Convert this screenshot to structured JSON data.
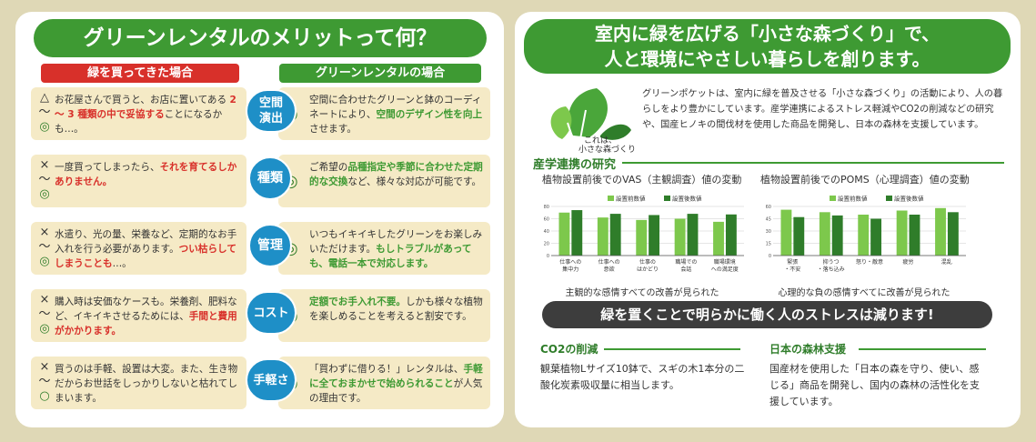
{
  "left": {
    "title": "グリーンレンタルのメリットって何？",
    "header_buy": "緑を買ってきた場合",
    "header_rental": "グリーンレンタルの場合",
    "rows": [
      {
        "label": "空間\n演出",
        "marks": [
          "△",
          "～",
          "◎"
        ],
        "left": [
          {
            "t": "お花屋さんで買うと、お店に置いてある "
          },
          {
            "t": "2 ～ 3 種類の中で妥協する",
            "c": "r"
          },
          {
            "t": "ことになるかも…。"
          }
        ],
        "right": [
          {
            "t": "空間に合わせたグリーンと鉢のコーディネートにより、"
          },
          {
            "t": "空間のデザイン性を向上",
            "c": "g"
          },
          {
            "t": "させます。"
          }
        ]
      },
      {
        "label": "種類",
        "marks": [
          "×",
          "～",
          "◎"
        ],
        "left": [
          {
            "t": "一度買ってしまったら、"
          },
          {
            "t": "それを育てるしかありません。",
            "c": "r"
          }
        ],
        "right": [
          {
            "t": "ご希望の"
          },
          {
            "t": "品種指定や季節に合わせた定期的な交換",
            "c": "g"
          },
          {
            "t": "など、様々な対応が可能です。"
          }
        ]
      },
      {
        "label": "管理",
        "marks": [
          "×",
          "～",
          "◎"
        ],
        "left": [
          {
            "t": "水遣り、光の量、栄養など、定期的なお手入れを行う必要があります。"
          },
          {
            "t": "つい枯らしてしまうことも",
            "c": "r"
          },
          {
            "t": "…。"
          }
        ],
        "right": [
          {
            "t": "いつもイキイキしたグリーンをお楽しみいただけます。"
          },
          {
            "t": "もしトラブルがあっても、電話一本で対応します。",
            "c": "g"
          }
        ]
      },
      {
        "label": "コスト",
        "marks": [
          "×",
          "～",
          "◎"
        ],
        "left": [
          {
            "t": "購入時は安価なケースも。栄養剤、肥料など、イキイキさせるためには、"
          },
          {
            "t": "手間と費用がかかります。",
            "c": "r"
          }
        ],
        "right": [
          {
            "t": "定額でお手入れ不要。",
            "c": "g"
          },
          {
            "t": "しかも様々な植物を楽しめることを考えると割安です。"
          }
        ]
      },
      {
        "label": "手軽さ",
        "marks": [
          "×",
          "～",
          "○"
        ],
        "left": [
          {
            "t": "買うのは手軽、設置は大変。また、生き物だからお世話をしっかりしないと枯れてしまいます。"
          }
        ],
        "right": [
          {
            "t": "「買わずに借りる！」レンタルは、"
          },
          {
            "t": "手軽に全ておまかせで始められること",
            "c": "g"
          },
          {
            "t": "が人気の理由です。"
          }
        ]
      }
    ]
  },
  "right": {
    "title_line1": "室内に緑を広げる「小さな森づくり」で、",
    "title_line2": "人と環境にやさしい暮らしを創ります。",
    "logo_text_1": "これは、",
    "logo_text_2": "小さな森づくり",
    "intro": "グリーンポケットは、室内に緑を普及させる「小さな森づくり」の活動により、人の暮らしをより豊かにしています。産学連携によるストレス軽減やCO2の削減などの研究や、国産ヒノキの間伐材を使用した商品を開発し、日本の森林を支援しています。",
    "research_heading": "産学連携の研究",
    "chart1_title": "植物設置前後でのVAS（主観調査）値の変動",
    "chart2_title": "植物設置前後でのPOMS（心理調査）値の変動",
    "chart1_caption": "主観的な感情すべての改善が見られた",
    "chart2_caption": "心理的な負の感情すべてに改善が見られた",
    "banner": "緑を置くことで明らかに働く人のストレスは減ります!",
    "co2_heading": "CO2の削減",
    "co2_text": "観葉植物Lサイズ10鉢で、スギの木1本分の二酸化炭素吸収量に相当します。",
    "forest_heading": "日本の森林支援",
    "forest_text": "国産材を使用した「日本の森を守り、使い、感じる」商品を開発し、国内の森林の活性化を支援しています。",
    "colors": {
      "before": "#7dc84c",
      "after": "#2f7d2a",
      "accent": "#3e9a33",
      "red": "#d8302a",
      "blue": "#1e8fc7"
    }
  },
  "chart_data": [
    {
      "type": "bar",
      "title": "植物設置前後でのVAS（主観調査）値の変動",
      "categories": [
        "仕事への\n集中力",
        "仕事への\n意欲",
        "仕事の\nはかどり",
        "職場での\n会話",
        "職場環境\nへの満足度"
      ],
      "series": [
        {
          "name": "設置前数値",
          "values": [
            70,
            62,
            58,
            60,
            55
          ]
        },
        {
          "name": "設置後数値",
          "values": [
            74,
            68,
            66,
            68,
            67
          ]
        }
      ],
      "ylim": [
        0,
        80
      ],
      "grid": true,
      "legend": "top-center"
    },
    {
      "type": "bar",
      "title": "植物設置前後でのPOMS（心理調査）値の変動",
      "categories": [
        "緊張\n・不安",
        "抑うつ\n・落ち込み",
        "怒り・敵意",
        "疲労",
        "混乱"
      ],
      "series": [
        {
          "name": "設置前数値",
          "values": [
            56,
            53,
            50,
            55,
            58
          ]
        },
        {
          "name": "設置後数値",
          "values": [
            47,
            49,
            45,
            50,
            53
          ]
        }
      ],
      "ylim": [
        0,
        60
      ],
      "grid": true,
      "legend": "top-center"
    }
  ]
}
